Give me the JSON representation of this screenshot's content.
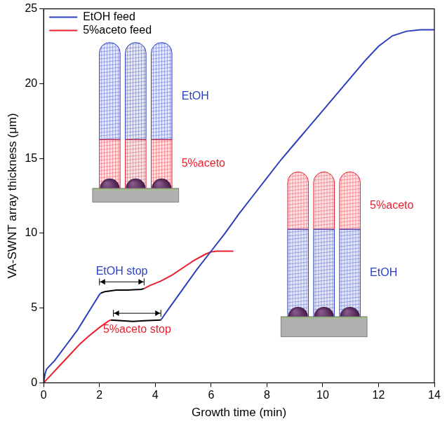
{
  "chart_data": {
    "type": "line",
    "x_label": "Growth time (min)",
    "y_label": "VA-SWNT array thickness (μm)",
    "xlim": [
      0,
      14
    ],
    "xticks": [
      0,
      2,
      4,
      6,
      8,
      10,
      12,
      14
    ],
    "ylim": [
      0,
      25
    ],
    "yticks": [
      0,
      5,
      10,
      15,
      20,
      25
    ],
    "grid": false,
    "legend": "upper left",
    "series": [
      {
        "name": "EtOH feed",
        "color": "#2a3fc0",
        "x": [
          0,
          0.05,
          0.1,
          0.2,
          0.4,
          0.6,
          0.8,
          1.0,
          1.2,
          1.4,
          1.6,
          1.8,
          2.0,
          2.05,
          4.2,
          4.2,
          4.5,
          5.0,
          5.5,
          6.0,
          6.5,
          7.0,
          7.5,
          8.0,
          8.5,
          9.0,
          9.5,
          10.0,
          10.5,
          11.0,
          11.5,
          12.0,
          12.5,
          13.0,
          13.5,
          14.0
        ],
        "values": [
          0,
          0.6,
          0.9,
          1.1,
          1.5,
          2.0,
          2.5,
          3.0,
          3.5,
          4.1,
          4.7,
          5.3,
          5.9,
          6.0,
          null,
          4.2,
          5.0,
          6.3,
          7.6,
          8.8,
          10.0,
          11.3,
          12.5,
          13.7,
          14.9,
          16.0,
          17.1,
          18.2,
          19.3,
          20.4,
          21.5,
          22.5,
          23.2,
          23.5,
          23.6,
          23.6
        ]
      },
      {
        "name": "5%aceto feed",
        "color": "#e8202e",
        "x": [
          0,
          0.1,
          0.3,
          0.5,
          0.8,
          1.0,
          1.3,
          1.6,
          2.0,
          2.3,
          2.4,
          3.6,
          3.6,
          3.8,
          4.2,
          4.6,
          5.0,
          5.4,
          5.8,
          6.0,
          6.2,
          6.8
        ],
        "values": [
          0,
          0.2,
          0.6,
          1.0,
          1.6,
          2.0,
          2.6,
          3.1,
          3.7,
          4.1,
          4.2,
          null,
          6.3,
          6.5,
          6.8,
          7.2,
          7.7,
          8.2,
          8.6,
          8.75,
          8.8,
          8.8
        ]
      },
      {
        "color": "#000000",
        "x": [
          2.05,
          2.2,
          2.6,
          3.0,
          3.5,
          3.6,
          2.4,
          2.4,
          2.8,
          3.2,
          3.6,
          4.2
        ],
        "values": [
          6.0,
          6.1,
          6.2,
          6.2,
          6.25,
          6.3,
          null,
          4.2,
          4.15,
          4.1,
          4.15,
          4.2
        ]
      }
    ],
    "annotations": [
      {
        "text": "EtOH stop",
        "color": "#2a3fc0",
        "x_start": 2.0,
        "x_end": 3.6,
        "y": 6.75,
        "text_y": 7.45
      },
      {
        "text": "5%aceto stop",
        "color": "#e8202e",
        "x_start": 2.5,
        "x_end": 4.2,
        "y": 4.65,
        "text_y": 3.55
      }
    ],
    "insets": [
      {
        "layers": [
          {
            "text": "EtOH",
            "color": "#2a3fc0"
          },
          {
            "text": "5%aceto",
            "color": "#e8202e"
          }
        ]
      },
      {
        "layers": [
          {
            "text": "5%aceto",
            "color": "#e8202e"
          },
          {
            "text": "EtOH",
            "color": "#2a3fc0"
          }
        ]
      }
    ]
  }
}
